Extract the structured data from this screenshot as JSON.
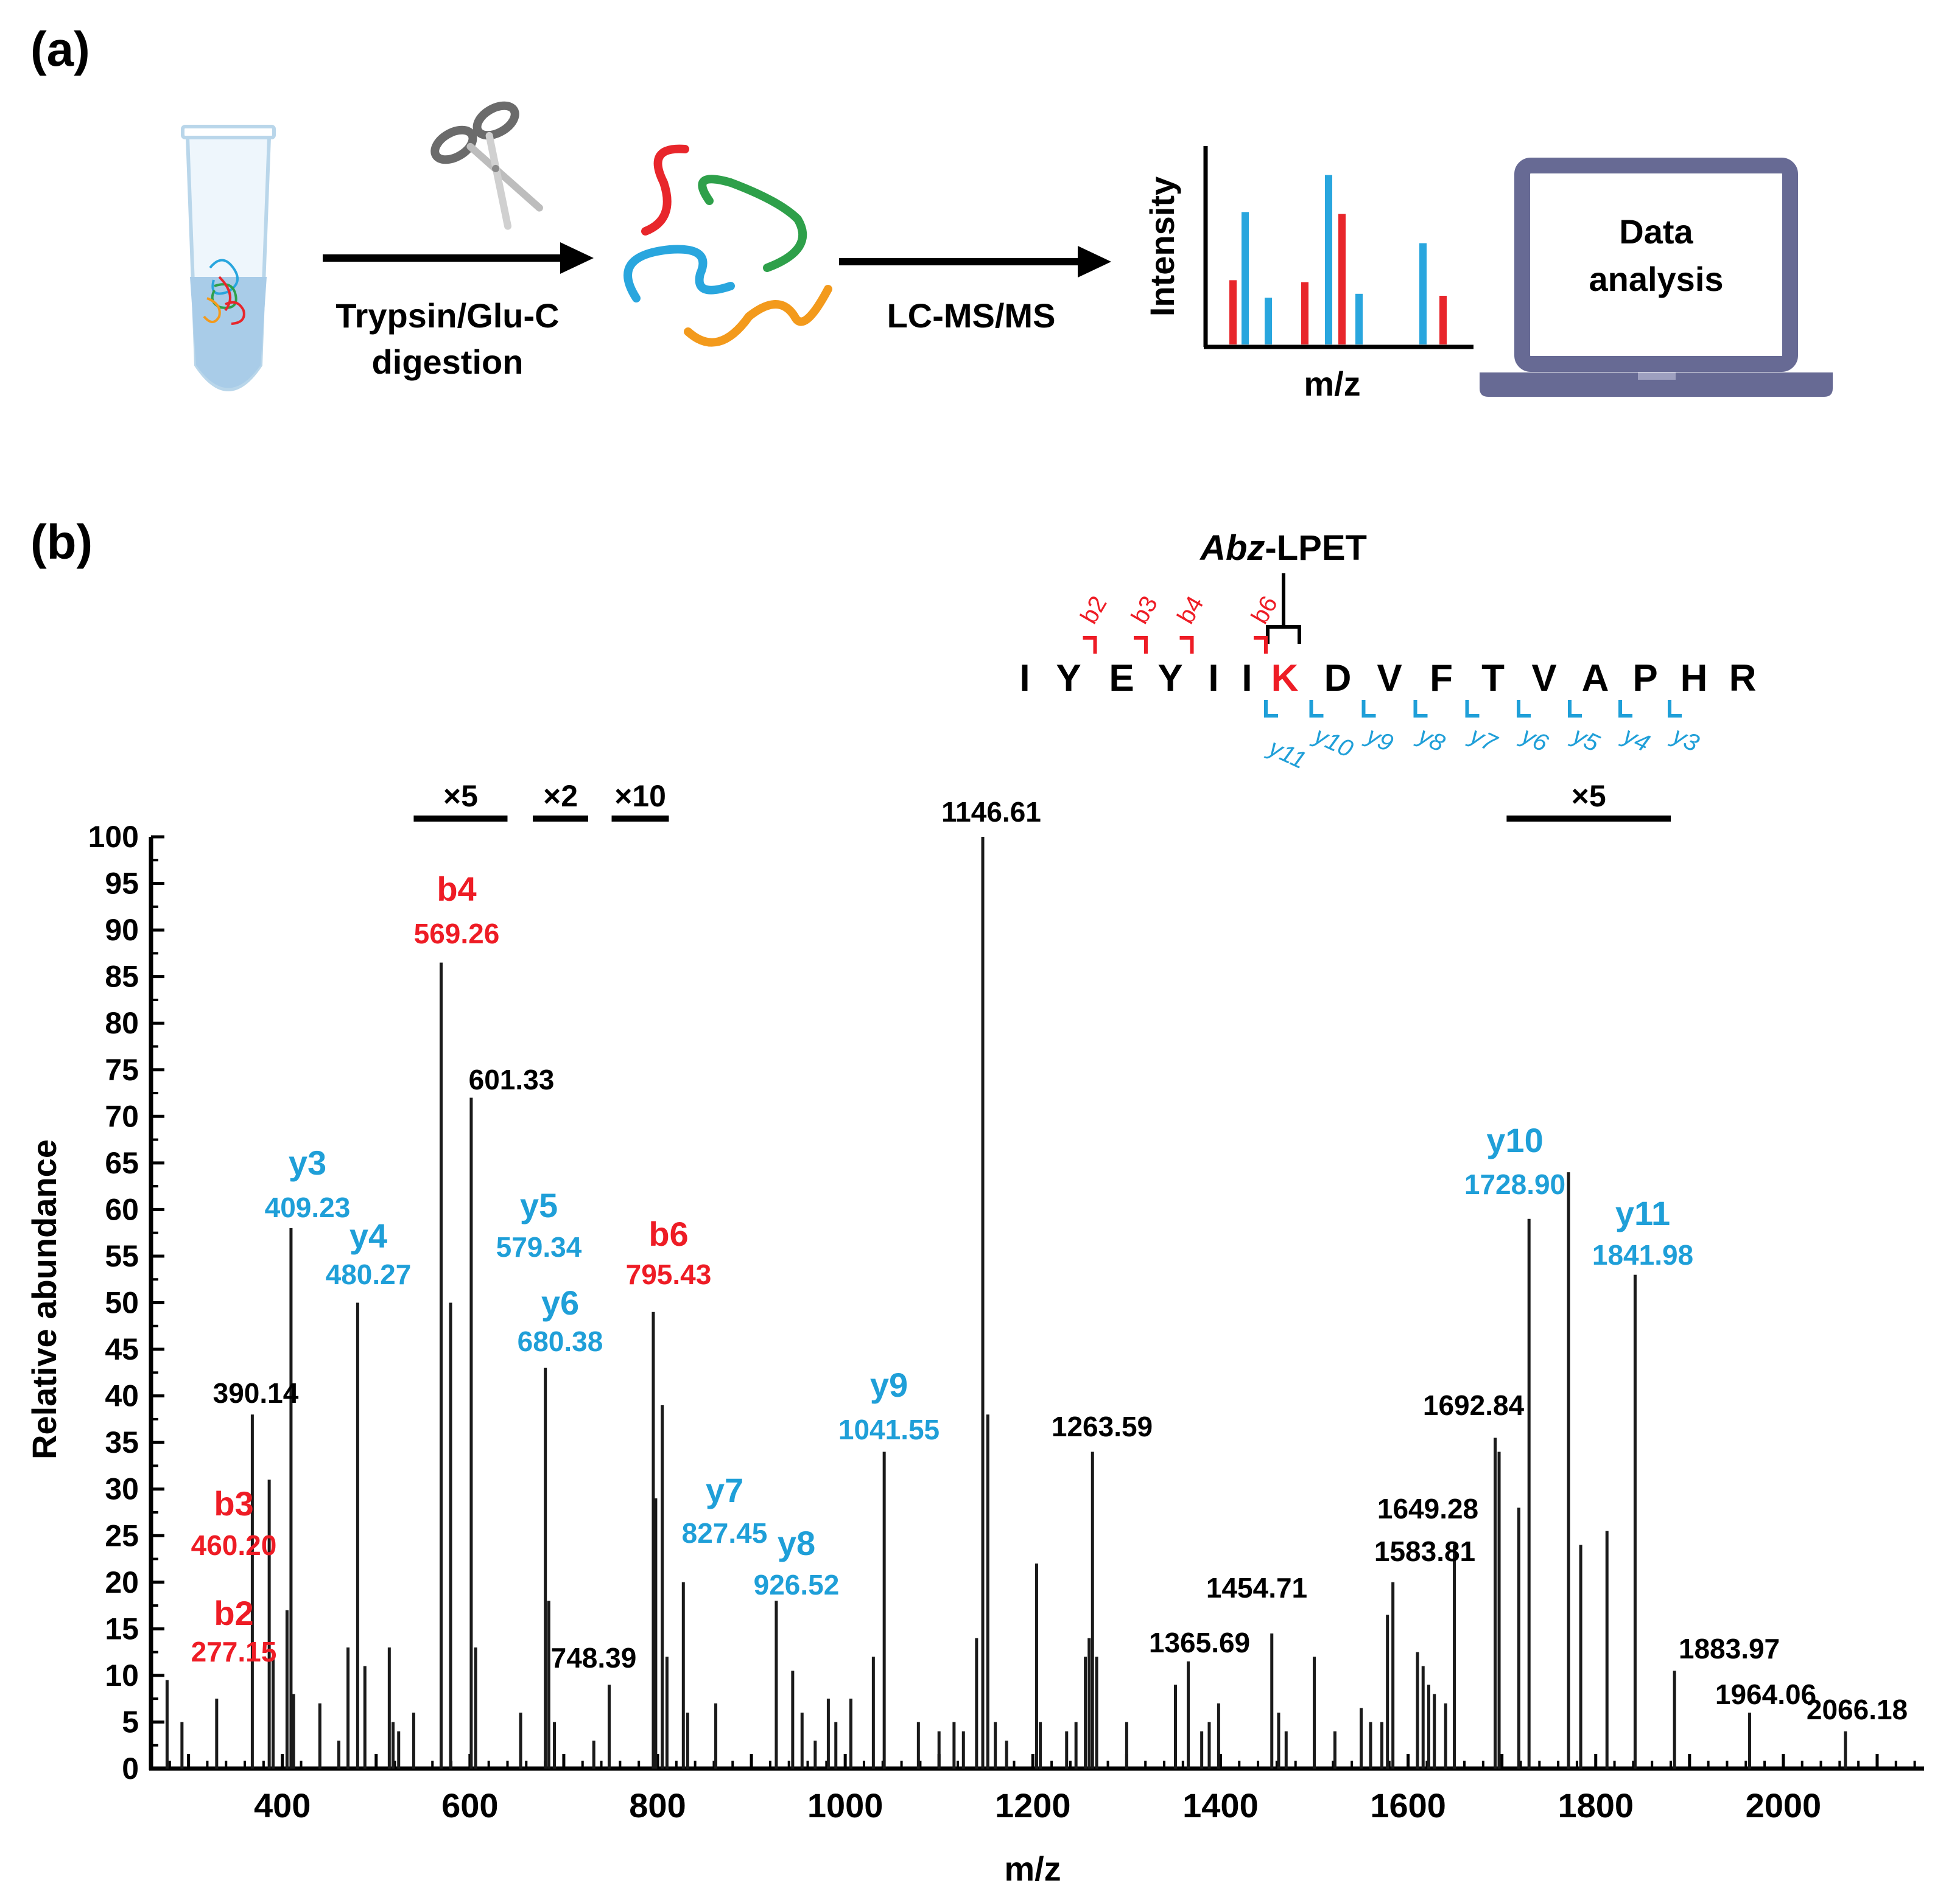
{
  "colors": {
    "b_ion": "#ee1c25",
    "y_ion": "#1f9fd8",
    "black": "#000000",
    "laptop": "#676a94",
    "tube_liquid": "#a9cce8",
    "strand_red": "#e8262b",
    "strand_green": "#2ea04a",
    "strand_blue": "#29a6de",
    "strand_orange": "#f39a1c"
  },
  "panel_a": {
    "label": "(a)",
    "step1_label_line1": "Trypsin/Glu-C",
    "step1_label_line2": "digestion",
    "step2_label": "LC-MS/MS",
    "mini_chart_ylabel": "Intensity",
    "mini_chart_xlabel": "m/z",
    "laptop_text_line1": "Data",
    "laptop_text_line2": "analysis",
    "icons": [
      "tube-icon",
      "scissors-icon",
      "peptide-strands-icon",
      "mass-spectrum-icon",
      "laptop-icon"
    ],
    "mini_chart_bars": [
      {
        "h": 0.33,
        "color": "red"
      },
      {
        "h": 0.68,
        "color": "blue"
      },
      {
        "h": 0.24,
        "color": "blue"
      },
      {
        "h": 0.32,
        "color": "red"
      },
      {
        "h": 0.87,
        "color": "blue"
      },
      {
        "h": 0.67,
        "color": "red"
      },
      {
        "h": 0.26,
        "color": "blue"
      },
      {
        "h": 0.52,
        "color": "blue"
      },
      {
        "h": 0.25,
        "color": "red"
      }
    ]
  },
  "panel_b": {
    "label": "(b)",
    "modification_prefix": "Abz",
    "modification_suffix": "-LPET",
    "sequence": [
      "I",
      "Y",
      "E",
      "Y",
      "I",
      "I",
      "K",
      "D",
      "V",
      "F",
      "T",
      "V",
      "A",
      "P",
      "H",
      "R"
    ],
    "modified_residue_index": 6,
    "b_ion_marks": [
      {
        "label": "b2",
        "after": 1
      },
      {
        "label": "b3",
        "after": 2
      },
      {
        "label": "b4",
        "after": 3
      },
      {
        "label": "b6",
        "after": 5
      }
    ],
    "y_ion_marks": [
      {
        "label": "y11",
        "before": 5
      },
      {
        "label": "y10",
        "before": 6
      },
      {
        "label": "y9",
        "before": 7
      },
      {
        "label": "y8",
        "before": 8
      },
      {
        "label": "y7",
        "before": 9
      },
      {
        "label": "y6",
        "before": 10
      },
      {
        "label": "y5",
        "before": 11
      },
      {
        "label": "y4",
        "before": 12
      },
      {
        "label": "y3",
        "before": 13
      }
    ]
  },
  "chart_data": {
    "type": "bar",
    "xlabel": "m/z",
    "ylabel": "Relative abundance",
    "xlim": [
      260,
      2150
    ],
    "ylim": [
      0,
      100
    ],
    "xticks": [
      400,
      600,
      800,
      1000,
      1200,
      1400,
      1600,
      1800,
      2000
    ],
    "yticks": [
      0,
      5,
      10,
      15,
      20,
      25,
      30,
      35,
      40,
      45,
      50,
      55,
      60,
      65,
      70,
      75,
      80,
      85,
      90,
      95,
      100
    ],
    "grid": false,
    "scale_factors": [
      {
        "label": "×5",
        "from": 540,
        "to": 640
      },
      {
        "label": "×2",
        "from": 667,
        "to": 726
      },
      {
        "label": "×10",
        "from": 751,
        "to": 812
      },
      {
        "label": "×5",
        "from": 1705,
        "to": 1880
      }
    ],
    "peaks": [
      {
        "mz": 277.15,
        "y": 9.5
      },
      {
        "mz": 293,
        "y": 5
      },
      {
        "mz": 330,
        "y": 7.5
      },
      {
        "mz": 368,
        "y": 38
      },
      {
        "mz": 386,
        "y": 31
      },
      {
        "mz": 390.14,
        "y": 12
      },
      {
        "mz": 405,
        "y": 17
      },
      {
        "mz": 409.23,
        "y": 58
      },
      {
        "mz": 412,
        "y": 8
      },
      {
        "mz": 440,
        "y": 7
      },
      {
        "mz": 460.2,
        "y": 3
      },
      {
        "mz": 470,
        "y": 13
      },
      {
        "mz": 480.27,
        "y": 50
      },
      {
        "mz": 488,
        "y": 11
      },
      {
        "mz": 514,
        "y": 13
      },
      {
        "mz": 518,
        "y": 5
      },
      {
        "mz": 524,
        "y": 4
      },
      {
        "mz": 540,
        "y": 6
      },
      {
        "mz": 569.26,
        "y": 86.5
      },
      {
        "mz": 579.34,
        "y": 50
      },
      {
        "mz": 601.33,
        "y": 72
      },
      {
        "mz": 606,
        "y": 13
      },
      {
        "mz": 654,
        "y": 6
      },
      {
        "mz": 680.38,
        "y": 43
      },
      {
        "mz": 684,
        "y": 18
      },
      {
        "mz": 690,
        "y": 5
      },
      {
        "mz": 732,
        "y": 3
      },
      {
        "mz": 748.39,
        "y": 9
      },
      {
        "mz": 795.43,
        "y": 49
      },
      {
        "mz": 798,
        "y": 29
      },
      {
        "mz": 805,
        "y": 39
      },
      {
        "mz": 810,
        "y": 12
      },
      {
        "mz": 827.45,
        "y": 20
      },
      {
        "mz": 832,
        "y": 6
      },
      {
        "mz": 862,
        "y": 7
      },
      {
        "mz": 926.52,
        "y": 18
      },
      {
        "mz": 944,
        "y": 10.5
      },
      {
        "mz": 954,
        "y": 6
      },
      {
        "mz": 968,
        "y": 3
      },
      {
        "mz": 982,
        "y": 7.5
      },
      {
        "mz": 990,
        "y": 5
      },
      {
        "mz": 1006,
        "y": 7.5
      },
      {
        "mz": 1030,
        "y": 12
      },
      {
        "mz": 1041.55,
        "y": 34
      },
      {
        "mz": 1078,
        "y": 5
      },
      {
        "mz": 1100,
        "y": 4
      },
      {
        "mz": 1116,
        "y": 5
      },
      {
        "mz": 1126,
        "y": 4
      },
      {
        "mz": 1140,
        "y": 14
      },
      {
        "mz": 1146.61,
        "y": 100
      },
      {
        "mz": 1152,
        "y": 38
      },
      {
        "mz": 1160,
        "y": 5
      },
      {
        "mz": 1172,
        "y": 3
      },
      {
        "mz": 1204,
        "y": 22
      },
      {
        "mz": 1208,
        "y": 5
      },
      {
        "mz": 1236,
        "y": 4
      },
      {
        "mz": 1246,
        "y": 5
      },
      {
        "mz": 1256,
        "y": 12
      },
      {
        "mz": 1260,
        "y": 14
      },
      {
        "mz": 1263.59,
        "y": 34
      },
      {
        "mz": 1268,
        "y": 12
      },
      {
        "mz": 1300,
        "y": 5
      },
      {
        "mz": 1352,
        "y": 9
      },
      {
        "mz": 1365.69,
        "y": 11.5
      },
      {
        "mz": 1380,
        "y": 4
      },
      {
        "mz": 1388,
        "y": 5
      },
      {
        "mz": 1398,
        "y": 7
      },
      {
        "mz": 1454.71,
        "y": 14.5
      },
      {
        "mz": 1462,
        "y": 6
      },
      {
        "mz": 1470,
        "y": 4
      },
      {
        "mz": 1500,
        "y": 12
      },
      {
        "mz": 1522,
        "y": 4
      },
      {
        "mz": 1550,
        "y": 6.5
      },
      {
        "mz": 1560,
        "y": 5
      },
      {
        "mz": 1572,
        "y": 5
      },
      {
        "mz": 1578,
        "y": 16.5
      },
      {
        "mz": 1583.81,
        "y": 20
      },
      {
        "mz": 1610,
        "y": 12.5
      },
      {
        "mz": 1616,
        "y": 11
      },
      {
        "mz": 1622,
        "y": 9
      },
      {
        "mz": 1628,
        "y": 8
      },
      {
        "mz": 1640,
        "y": 7
      },
      {
        "mz": 1649.28,
        "y": 24
      },
      {
        "mz": 1692.84,
        "y": 35.5
      },
      {
        "mz": 1697,
        "y": 34
      },
      {
        "mz": 1718,
        "y": 28
      },
      {
        "mz": 1728.9,
        "y": 59
      },
      {
        "mz": 1771,
        "y": 64
      },
      {
        "mz": 1784,
        "y": 24
      },
      {
        "mz": 1812,
        "y": 25.5
      },
      {
        "mz": 1841.98,
        "y": 53
      },
      {
        "mz": 1883.97,
        "y": 10.5
      },
      {
        "mz": 1964.06,
        "y": 6
      },
      {
        "mz": 2066.18,
        "y": 4
      }
    ],
    "annotations": [
      {
        "ion": "b2",
        "mz_label": "277.15",
        "type": "b"
      },
      {
        "ion": "b3",
        "mz_label": "460.20",
        "type": "b"
      },
      {
        "ion": "",
        "mz_label": "390.14",
        "type": "plain"
      },
      {
        "ion": "y3",
        "mz_label": "409.23",
        "type": "y"
      },
      {
        "ion": "y4",
        "mz_label": "480.27",
        "type": "y"
      },
      {
        "ion": "b4",
        "mz_label": "569.26",
        "type": "b"
      },
      {
        "ion": "y5",
        "mz_label": "579.34",
        "type": "y"
      },
      {
        "ion": "",
        "mz_label": "601.33",
        "type": "plain"
      },
      {
        "ion": "y6",
        "mz_label": "680.38",
        "type": "y"
      },
      {
        "ion": "",
        "mz_label": "748.39",
        "type": "plain"
      },
      {
        "ion": "b6",
        "mz_label": "795.43",
        "type": "b"
      },
      {
        "ion": "y7",
        "mz_label": "827.45",
        "type": "y"
      },
      {
        "ion": "y8",
        "mz_label": "926.52",
        "type": "y"
      },
      {
        "ion": "y9",
        "mz_label": "1041.55",
        "type": "y"
      },
      {
        "ion": "",
        "mz_label": "1146.61",
        "type": "plain"
      },
      {
        "ion": "",
        "mz_label": "1263.59",
        "type": "plain"
      },
      {
        "ion": "",
        "mz_label": "1365.69",
        "type": "plain"
      },
      {
        "ion": "",
        "mz_label": "1454.71",
        "type": "plain"
      },
      {
        "ion": "",
        "mz_label": "1583.81",
        "type": "plain"
      },
      {
        "ion": "",
        "mz_label": "1649.28",
        "type": "plain"
      },
      {
        "ion": "",
        "mz_label": "1692.84",
        "type": "plain"
      },
      {
        "ion": "y10",
        "mz_label": "1728.90",
        "type": "y"
      },
      {
        "ion": "y11",
        "mz_label": "1841.98",
        "type": "y"
      },
      {
        "ion": "",
        "mz_label": "1883.97",
        "type": "plain"
      },
      {
        "ion": "",
        "mz_label": "1964.06",
        "type": "plain"
      },
      {
        "ion": "",
        "mz_label": "2066.18",
        "type": "plain"
      }
    ]
  }
}
